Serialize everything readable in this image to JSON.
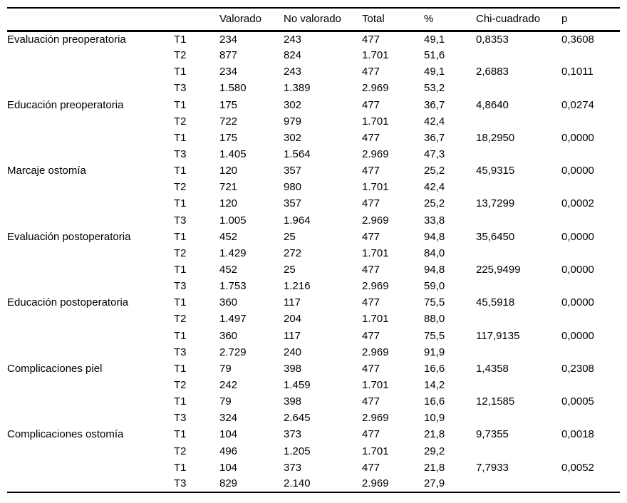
{
  "colors": {
    "background": "#ffffff",
    "text": "#000000",
    "rule": "#000000"
  },
  "table": {
    "headers": {
      "label": "",
      "t": "",
      "valorado": "Valorado",
      "no_valorado": "No valorado",
      "total": "Total",
      "pct": "%",
      "chi": "Chi-cuadrado",
      "p": "p"
    },
    "groups": [
      {
        "label": "Evaluación preoperatoria",
        "rows": [
          {
            "t": "T1",
            "valorado": "234",
            "no_valorado": "243",
            "total": "477",
            "pct": "49,1",
            "chi": "0,8353",
            "p": "0,3608"
          },
          {
            "t": "T2",
            "valorado": "877",
            "no_valorado": "824",
            "total": "1.701",
            "pct": "51,6",
            "chi": "",
            "p": ""
          },
          {
            "t": "T1",
            "valorado": "234",
            "no_valorado": "243",
            "total": "477",
            "pct": "49,1",
            "chi": "2,6883",
            "p": "0,1011"
          },
          {
            "t": "T3",
            "valorado": "1.580",
            "no_valorado": "1.389",
            "total": "2.969",
            "pct": "53,2",
            "chi": "",
            "p": ""
          }
        ]
      },
      {
        "label": "Educación preoperatoria",
        "rows": [
          {
            "t": "T1",
            "valorado": "175",
            "no_valorado": "302",
            "total": "477",
            "pct": "36,7",
            "chi": "4,8640",
            "p": "0,0274"
          },
          {
            "t": "T2",
            "valorado": "722",
            "no_valorado": "979",
            "total": "1.701",
            "pct": "42,4",
            "chi": "",
            "p": ""
          },
          {
            "t": "T1",
            "valorado": "175",
            "no_valorado": "302",
            "total": "477",
            "pct": "36,7",
            "chi": "18,2950",
            "p": "0,0000"
          },
          {
            "t": "T3",
            "valorado": "1.405",
            "no_valorado": "1.564",
            "total": "2.969",
            "pct": "47,3",
            "chi": "",
            "p": ""
          }
        ]
      },
      {
        "label": "Marcaje ostomía",
        "rows": [
          {
            "t": "T1",
            "valorado": "120",
            "no_valorado": "357",
            "total": "477",
            "pct": "25,2",
            "chi": "45,9315",
            "p": "0,0000"
          },
          {
            "t": "T2",
            "valorado": "721",
            "no_valorado": "980",
            "total": "1.701",
            "pct": "42,4",
            "chi": "",
            "p": ""
          },
          {
            "t": "T1",
            "valorado": "120",
            "no_valorado": "357",
            "total": "477",
            "pct": "25,2",
            "chi": "13,7299",
            "p": "0,0002"
          },
          {
            "t": "T3",
            "valorado": "1.005",
            "no_valorado": "1.964",
            "total": "2.969",
            "pct": "33,8",
            "chi": "",
            "p": ""
          }
        ]
      },
      {
        "label": "Evaluación postoperatoria",
        "rows": [
          {
            "t": "T1",
            "valorado": "452",
            "no_valorado": "25",
            "total": "477",
            "pct": "94,8",
            "chi": "35,6450",
            "p": "0,0000"
          },
          {
            "t": "T2",
            "valorado": "1.429",
            "no_valorado": "272",
            "total": "1.701",
            "pct": "84,0",
            "chi": "",
            "p": ""
          },
          {
            "t": "T1",
            "valorado": "452",
            "no_valorado": "25",
            "total": "477",
            "pct": "94,8",
            "chi": "225,9499",
            "p": "0,0000"
          },
          {
            "t": "T3",
            "valorado": "1.753",
            "no_valorado": "1.216",
            "total": "2.969",
            "pct": "59,0",
            "chi": "",
            "p": ""
          }
        ]
      },
      {
        "label": "Educación postoperatoria",
        "rows": [
          {
            "t": "T1",
            "valorado": "360",
            "no_valorado": "117",
            "total": "477",
            "pct": "75,5",
            "chi": "45,5918",
            "p": "0,0000"
          },
          {
            "t": "T2",
            "valorado": "1.497",
            "no_valorado": "204",
            "total": "1.701",
            "pct": "88,0",
            "chi": "",
            "p": ""
          },
          {
            "t": "T1",
            "valorado": "360",
            "no_valorado": "117",
            "total": "477",
            "pct": "75,5",
            "chi": "117,9135",
            "p": "0,0000"
          },
          {
            "t": "T3",
            "valorado": "2.729",
            "no_valorado": "240",
            "total": "2.969",
            "pct": "91,9",
            "chi": "",
            "p": ""
          }
        ]
      },
      {
        "label": "Complicaciones piel",
        "rows": [
          {
            "t": "T1",
            "valorado": "79",
            "no_valorado": "398",
            "total": "477",
            "pct": "16,6",
            "chi": "1,4358",
            "p": "0,2308"
          },
          {
            "t": "T2",
            "valorado": "242",
            "no_valorado": "1.459",
            "total": "1.701",
            "pct": "14,2",
            "chi": "",
            "p": ""
          },
          {
            "t": "T1",
            "valorado": "79",
            "no_valorado": "398",
            "total": "477",
            "pct": "16,6",
            "chi": "12,1585",
            "p": "0,0005"
          },
          {
            "t": "T3",
            "valorado": "324",
            "no_valorado": "2.645",
            "total": "2.969",
            "pct": "10,9",
            "chi": "",
            "p": ""
          }
        ]
      },
      {
        "label": "Complicaciones ostomía",
        "rows": [
          {
            "t": "T1",
            "valorado": "104",
            "no_valorado": "373",
            "total": "477",
            "pct": "21,8",
            "chi": "9,7355",
            "p": "0,0018"
          },
          {
            "t": "T2",
            "valorado": "496",
            "no_valorado": "1.205",
            "total": "1.701",
            "pct": "29,2",
            "chi": "",
            "p": ""
          },
          {
            "t": "T1",
            "valorado": "104",
            "no_valorado": "373",
            "total": "477",
            "pct": "21,8",
            "chi": "7,7933",
            "p": "0,0052"
          },
          {
            "t": "T3",
            "valorado": "829",
            "no_valorado": "2.140",
            "total": "2.969",
            "pct": "27,9",
            "chi": "",
            "p": ""
          }
        ]
      }
    ]
  }
}
